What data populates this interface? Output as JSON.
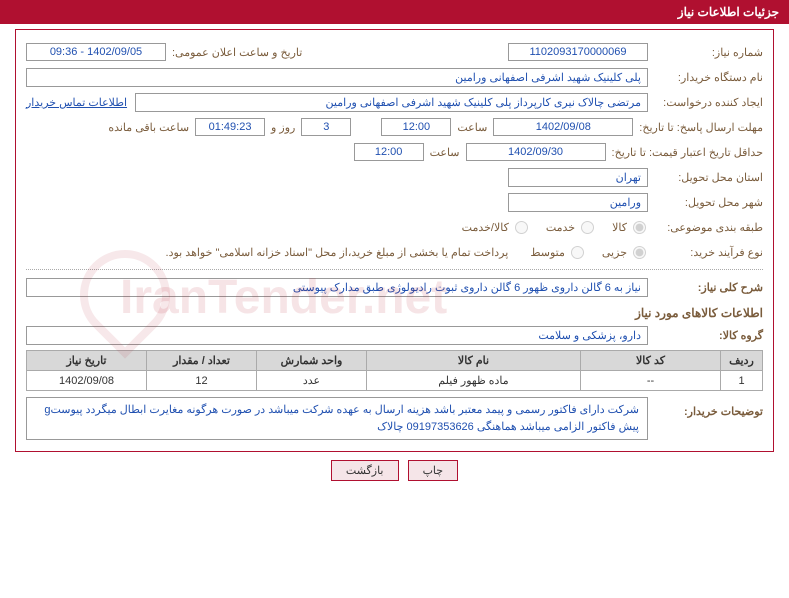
{
  "header": {
    "title": "جزئیات اطلاعات نیاز"
  },
  "fields": {
    "need_no_label": "شماره نیاز:",
    "need_no": "1102093170000069",
    "announce_label": "تاریخ و ساعت اعلان عمومی:",
    "announce": "1402/09/05 - 09:36",
    "buyer_org_label": "نام دستگاه خریدار:",
    "buyer_org": "پلی کلینیک شهید اشرفی اصفهانی   ورامین",
    "requester_label": "ایجاد کننده درخواست:",
    "requester": "مرتضی چالاک نیری کارپرداز پلی کلینیک شهید اشرفی اصفهانی   ورامین",
    "contact_link": "اطلاعات تماس خریدار",
    "deadline_label": "مهلت ارسال پاسخ: تا تاریخ:",
    "deadline_date": "1402/09/08",
    "time_word": "ساعت",
    "deadline_time": "12:00",
    "days": "3",
    "days_word": "روز و",
    "countdown": "01:49:23",
    "remaining": "ساعت باقی مانده",
    "validity_label": "حداقل تاریخ اعتبار قیمت: تا تاریخ:",
    "validity_date": "1402/09/30",
    "validity_time": "12:00",
    "province_label": "استان محل تحویل:",
    "province": "تهران",
    "city_label": "شهر محل تحویل:",
    "city": "ورامین",
    "class_label": "طبقه بندی موضوعی:",
    "r1": "کالا",
    "r2": "خدمت",
    "r3": "کالا/خدمت",
    "purchase_type_label": "نوع فرآیند خرید:",
    "p1": "جزیی",
    "p2": "متوسط",
    "purchase_note": "پرداخت تمام یا بخشی از مبلغ خرید،از محل \"اسناد خزانه اسلامی\" خواهد بود.",
    "summary_label": "شرح کلی نیاز:",
    "summary": "نیاز به 6 گالن داروی ظهور 6 گالن داروی ثبوت رادیولوژی طبق مدارک پیوستی",
    "items_section": "اطلاعات کالاهای مورد نیاز",
    "group_label": "گروه کالا:",
    "group": "دارو، پزشکی و سلامت",
    "buyer_notes_label": "توضیحات خریدار:",
    "buyer_notes": "شرکت دارای فاکتور رسمی و پیمد معتبر باشد هزینه ارسال به عهده شرکت میباشد در صورت هرگونه مغایرت ابطال میگردد پیوستg پیش فاکتور الزامی میباشد هماهنگی 09197353626 چالاک"
  },
  "table": {
    "headers": [
      "ردیف",
      "کد کالا",
      "نام کالا",
      "واحد شمارش",
      "تعداد / مقدار",
      "تاریخ نیاز"
    ],
    "row": [
      "1",
      "--",
      "ماده ظهور فیلم",
      "عدد",
      "12",
      "1402/09/08"
    ],
    "col_widths": [
      "42px",
      "140px",
      "auto",
      "110px",
      "110px",
      "120px"
    ]
  },
  "buttons": {
    "print": "چاپ",
    "back": "بازگشت"
  },
  "watermark": "IranTender.net"
}
